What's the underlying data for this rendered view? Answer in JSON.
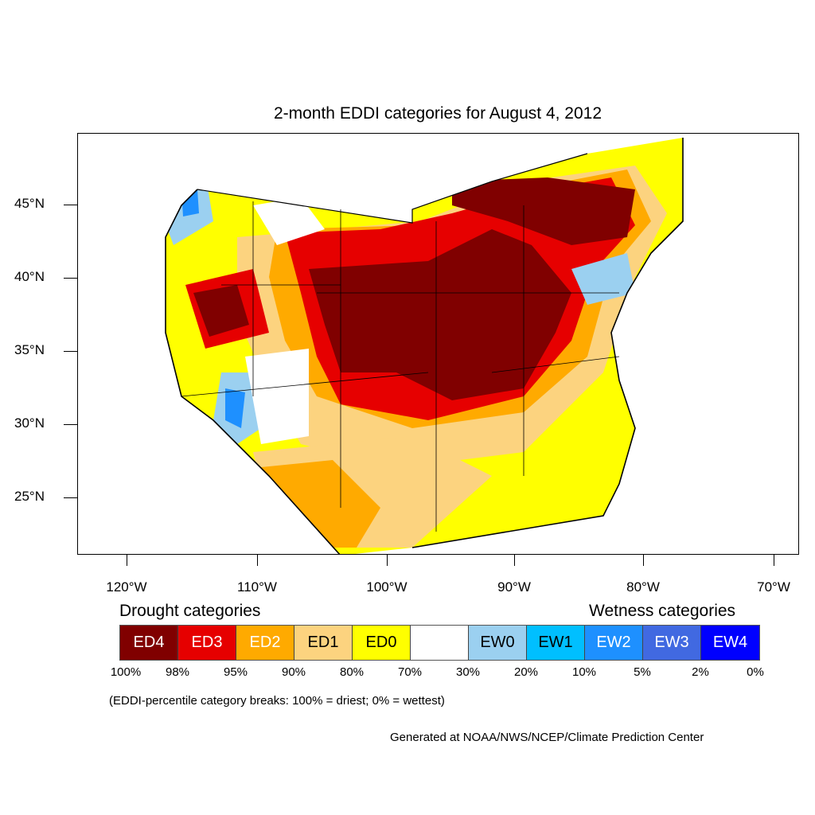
{
  "title": "2-month EDDI categories for August 4, 2012",
  "lat_labels": [
    "45°N",
    "40°N",
    "35°N",
    "30°N",
    "25°N"
  ],
  "lon_labels": [
    "120°W",
    "110°W",
    "100°W",
    "90°W",
    "80°W",
    "70°W"
  ],
  "legend": {
    "drought_title": "Drought categories",
    "wetness_title": "Wetness categories",
    "categories": [
      {
        "label": "ED4",
        "color": "#800000",
        "text_color": "#ffffff"
      },
      {
        "label": "ED3",
        "color": "#e60000",
        "text_color": "#ffffff"
      },
      {
        "label": "ED2",
        "color": "#ffaa00",
        "text_color": "#ffffff"
      },
      {
        "label": "ED1",
        "color": "#fcd37f",
        "text_color": "#000000"
      },
      {
        "label": "ED0",
        "color": "#ffff00",
        "text_color": "#000000"
      },
      {
        "label": "",
        "color": "#ffffff",
        "text_color": "#000000"
      },
      {
        "label": "EW0",
        "color": "#9bd0f0",
        "text_color": "#000000"
      },
      {
        "label": "EW1",
        "color": "#00bfff",
        "text_color": "#000000"
      },
      {
        "label": "EW2",
        "color": "#1e90ff",
        "text_color": "#ffffff"
      },
      {
        "label": "EW3",
        "color": "#4169e1",
        "text_color": "#ffffff"
      },
      {
        "label": "EW4",
        "color": "#0000ff",
        "text_color": "#ffffff"
      }
    ],
    "breaks": [
      "100%",
      "98%",
      "95%",
      "90%",
      "80%",
      "70%",
      "30%",
      "20%",
      "10%",
      "5%",
      "2%",
      "0%"
    ]
  },
  "note": "(EDDI-percentile category breaks: 100% = driest; 0% = wettest)",
  "credit": "Generated at NOAA/NWS/NCEP/Climate Prediction Center"
}
